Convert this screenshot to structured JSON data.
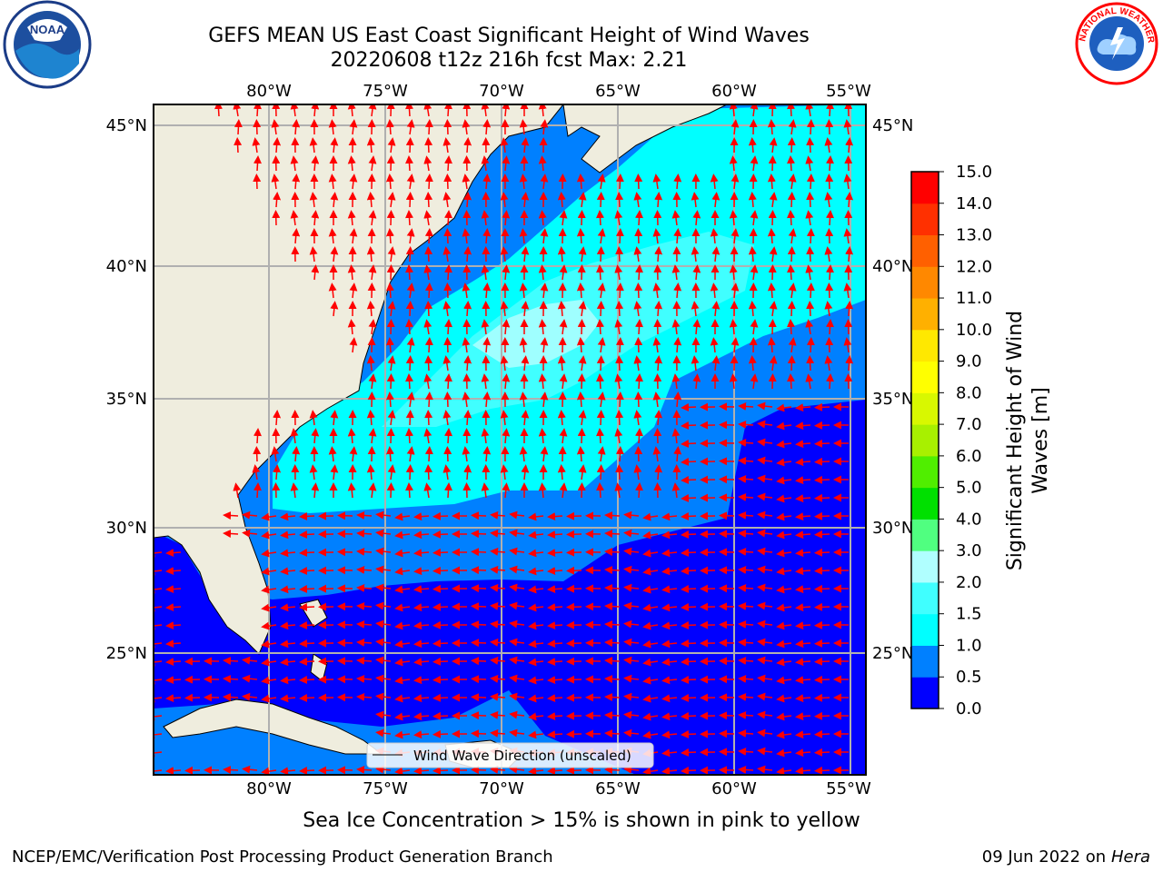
{
  "title": {
    "line1": "GEFS MEAN US East Coast Significant Height of Wind Waves",
    "line2": "20220608 t12z 216h fcst   Max: 2.21"
  },
  "map": {
    "lon_ticks": [
      "80°W",
      "75°W",
      "70°W",
      "65°W",
      "60°W",
      "55°W"
    ],
    "lat_ticks": [
      "45°N",
      "40°N",
      "35°N",
      "30°N",
      "25°N"
    ],
    "legend_label": "Wind Wave Direction (unscaled)",
    "arrow_color": "#ff0000",
    "land_color": "#efedde"
  },
  "colorbar": {
    "label": "Significant Height of Wind Waves [m]",
    "label_line1": "Significant Height of Wind",
    "label_line2": "Waves [m]",
    "ticks": [
      "0.0",
      "0.5",
      "1.0",
      "1.5",
      "2.0",
      "3.0",
      "4.0",
      "5.0",
      "6.0",
      "7.0",
      "8.0",
      "9.0",
      "10.0",
      "11.0",
      "12.0",
      "13.0",
      "14.0",
      "15.0"
    ],
    "colors": [
      "#0000ff",
      "#0080ff",
      "#00ffff",
      "#40ffff",
      "#b0ffff",
      "#50ff80",
      "#00e000",
      "#50ee00",
      "#a8f000",
      "#d8f800",
      "#ffff00",
      "#ffe800",
      "#ffb000",
      "#ff8800",
      "#ff6000",
      "#ff3000",
      "#ff0000"
    ]
  },
  "logos": {
    "noaa_text": "NOAA",
    "nws_text": "NATIONAL WEATHER SERVICE"
  },
  "footer": {
    "note": "Sea Ice Concentration > 15% is shown in pink to yellow",
    "credit": "NCEP/EMC/Verification Post Processing Product Generation Branch",
    "date": "09 Jun 2022 on",
    "machine": "Hera"
  }
}
